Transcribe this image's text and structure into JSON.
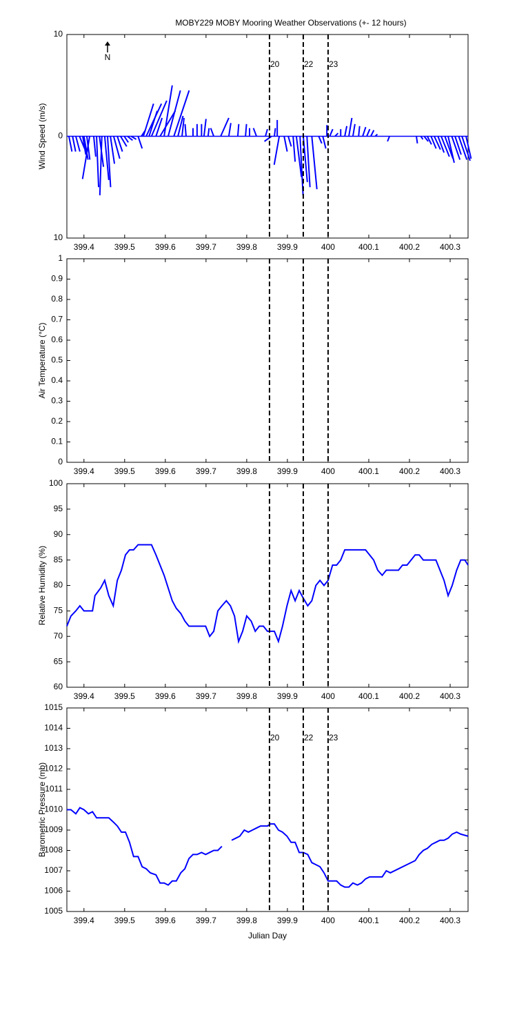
{
  "chart_data": [
    {
      "type": "stick",
      "title": "MOBY229 MOBY Mooring Weather Observations (+- 12 hours)",
      "ylabel": "Wind Speed (m/s)",
      "north_label": "N",
      "xlim": [
        399.358,
        400.344
      ],
      "xticks": [
        399.4,
        399.5,
        399.6,
        399.7,
        399.8,
        399.9,
        400,
        400.1,
        400.2,
        400.3
      ],
      "ylim": [
        -10,
        10
      ],
      "yticks": [
        {
          "value": -10,
          "label": "10"
        },
        0,
        10
      ],
      "vlines": [
        399.856,
        399.939,
        400.0
      ],
      "vline_labels": [
        "20",
        "22",
        "23"
      ],
      "vline_label_color": "#cc2222",
      "color": "#0000ff",
      "x": [
        399.363,
        399.372,
        399.38,
        399.389,
        399.397,
        399.4,
        399.407,
        399.414,
        399.424,
        399.431,
        399.438,
        399.444,
        399.451,
        399.458,
        399.465,
        399.473,
        399.482,
        399.49,
        399.499,
        399.507,
        399.516,
        399.533,
        399.541,
        399.546,
        399.553,
        399.56,
        399.566,
        399.577,
        399.587,
        399.597,
        399.607,
        399.621,
        399.631,
        399.641,
        399.651,
        399.668,
        399.678,
        399.689,
        399.695,
        399.705,
        399.719,
        399.736,
        399.756,
        399.778,
        399.797,
        399.807,
        399.824,
        399.846,
        399.861,
        399.868,
        399.875,
        399.88,
        399.892,
        399.902,
        399.914,
        399.922,
        399.931,
        399.939,
        399.948,
        399.96,
        399.977,
        399.987,
        399.997,
        400.004,
        400.017,
        400.031,
        400.041,
        400.051,
        400.061,
        400.075,
        400.085,
        400.095,
        400.105,
        400.116,
        400.151,
        400.217,
        400.228,
        400.236,
        400.244,
        400.253,
        400.261,
        400.27,
        400.278,
        400.287,
        400.295,
        400.304,
        400.312,
        400.321,
        400.329,
        400.339
      ],
      "u": [
        0.3,
        0.3,
        0.4,
        0.5,
        0.3,
        0.4,
        0.3,
        -0.7,
        0.2,
        0.2,
        0.4,
        -0.2,
        0.4,
        0.3,
        0.4,
        0.6,
        0.5,
        0.6,
        0.4,
        0.5,
        0.5,
        0.4,
        0.4,
        1,
        1.5,
        0.8,
        1.5,
        0.6,
        1.5,
        0.8,
        1.2,
        1.5,
        0.5,
        0.2,
        -0.1,
        0,
        0,
        0,
        0.2,
        0.1,
        -0.3,
        0.8,
        0.2,
        0.1,
        0.1,
        0,
        -0.3,
        0.2,
        -0.7,
        0.1,
        0,
        -0.5,
        0.3,
        0.3,
        0.2,
        0.5,
        0.3,
        0.4,
        0.3,
        0.5,
        0.3,
        0.3,
        0,
        0.3,
        0.3,
        0,
        0.2,
        0.3,
        0.2,
        0.1,
        0.3,
        0.3,
        0.3,
        0.2,
        -0.2,
        0.1,
        0.2,
        0.4,
        0.4,
        0.5,
        0.6,
        0.6,
        0.8,
        0.8,
        0.6,
        0.8,
        0.6,
        0.8,
        0.8,
        0.5
      ],
      "v": [
        -1.5,
        -1.5,
        -1.5,
        -1.2,
        -1.8,
        -2.3,
        -2.3,
        -4.2,
        -2,
        -5,
        -3,
        -5.8,
        -4.3,
        -5,
        -2.7,
        -2.2,
        -1.5,
        -1,
        -0.6,
        -0.4,
        -0.3,
        -1.2,
        0.6,
        3.2,
        3.2,
        2.5,
        3.5,
        1.8,
        2.5,
        5,
        4.5,
        4.5,
        2,
        1.8,
        1.2,
        0.8,
        1.2,
        1.2,
        1.7,
        0.8,
        0.8,
        1.8,
        1.3,
        1.2,
        1.2,
        0.8,
        0.8,
        0.7,
        -0.5,
        0.8,
        1.6,
        -2.8,
        -1.5,
        -1,
        -2.5,
        -4,
        -5.8,
        -4.5,
        -5,
        -5.2,
        -0.7,
        -1.2,
        1.1,
        0.7,
        0.3,
        0.7,
        1,
        1.8,
        1.2,
        1,
        0.9,
        0.7,
        0.6,
        0.2,
        -0.5,
        -0.7,
        -0.3,
        -0.5,
        -0.8,
        -1.2,
        -1.3,
        -1.6,
        -2,
        -2.2,
        -2.6,
        -2.3,
        -1.8,
        -2.3,
        -2.4,
        -2.2
      ]
    },
    {
      "type": "line",
      "ylabel": "Air Temperature (°C)",
      "xlim": [
        399.358,
        400.344
      ],
      "xticks": [
        399.4,
        399.5,
        399.6,
        399.7,
        399.8,
        399.9,
        400,
        400.1,
        400.2,
        400.3
      ],
      "ylim": [
        0,
        1
      ],
      "yticks": [
        0,
        0.1,
        0.2,
        0.3,
        0.4,
        0.5,
        0.6,
        0.7,
        0.8,
        0.9,
        1
      ],
      "vlines": [
        399.856,
        399.939,
        400.0
      ]
    },
    {
      "type": "line",
      "ylabel": "Relative Humidity (%)",
      "color": "#0000ff",
      "xlim": [
        399.358,
        400.344
      ],
      "xticks": [
        399.4,
        399.5,
        399.6,
        399.7,
        399.8,
        399.9,
        400,
        400.1,
        400.2,
        400.3
      ],
      "ylim": [
        60,
        100
      ],
      "yticks": [
        60,
        65,
        70,
        75,
        80,
        85,
        90,
        95,
        100
      ],
      "vlines": [
        399.856,
        399.939,
        400.0
      ],
      "x": [
        399.358,
        399.368,
        399.38,
        399.39,
        399.4,
        399.421,
        399.427,
        399.441,
        399.451,
        399.461,
        399.472,
        399.482,
        399.492,
        399.502,
        399.512,
        399.522,
        399.533,
        399.566,
        399.577,
        399.587,
        399.597,
        399.607,
        399.617,
        399.627,
        399.638,
        399.648,
        399.658,
        399.699,
        399.709,
        399.719,
        399.729,
        399.739,
        399.75,
        399.76,
        399.77,
        399.78,
        399.79,
        399.8,
        399.811,
        399.821,
        399.831,
        399.841,
        399.851,
        399.868,
        399.878,
        399.888,
        399.899,
        399.909,
        399.919,
        399.929,
        399.939,
        399.95,
        399.96,
        399.97,
        399.98,
        399.99,
        400.0,
        400.011,
        400.021,
        400.031,
        400.041,
        400.092,
        400.102,
        400.112,
        400.122,
        400.133,
        400.143,
        400.173,
        400.183,
        400.194,
        400.204,
        400.214,
        400.224,
        400.234,
        400.265,
        400.275,
        400.285,
        400.295,
        400.305,
        400.316,
        400.326,
        400.336,
        400.344
      ],
      "values": [
        72,
        74,
        75,
        76,
        75,
        75,
        78,
        79.5,
        81,
        78,
        76,
        81,
        83,
        86,
        87,
        87,
        88,
        88,
        86,
        84,
        82,
        79.5,
        77,
        75.5,
        74.5,
        73,
        72,
        72,
        70,
        71,
        75,
        76,
        77,
        76,
        74,
        69,
        71,
        74,
        73,
        71,
        72,
        72,
        71,
        71,
        69,
        72,
        76,
        79,
        77,
        79,
        77.5,
        76,
        77,
        80,
        81,
        80,
        81,
        84,
        84,
        85,
        87,
        87,
        86,
        85,
        83,
        82,
        83,
        83,
        84,
        84,
        85,
        86,
        86,
        85,
        85,
        83,
        81,
        78,
        80,
        83,
        85,
        85,
        84
      ]
    },
    {
      "type": "line",
      "ylabel": "Barometric Pressure (mb)",
      "xlabel": "Julian Day",
      "color": "#0000ff",
      "xlim": [
        399.358,
        400.344
      ],
      "xticks": [
        399.4,
        399.5,
        399.6,
        399.7,
        399.8,
        399.9,
        400,
        400.1,
        400.2,
        400.3
      ],
      "ylim": [
        1005,
        1015
      ],
      "yticks": [
        1005,
        1006,
        1007,
        1008,
        1009,
        1010,
        1011,
        1012,
        1013,
        1014,
        1015
      ],
      "vlines": [
        399.856,
        399.939,
        400.0
      ],
      "vline_labels": [
        "20",
        "22",
        "23"
      ],
      "vline_label_color": "#cc2222",
      "x": [
        399.358,
        399.368,
        399.38,
        399.39,
        399.4,
        399.411,
        399.421,
        399.431,
        399.461,
        399.472,
        399.482,
        399.492,
        399.502,
        399.512,
        399.522,
        399.533,
        399.543,
        399.553,
        399.563,
        399.577,
        399.587,
        399.597,
        399.607,
        399.617,
        399.627,
        399.638,
        399.648,
        399.658,
        399.668,
        399.678,
        399.689,
        399.699,
        399.709,
        399.719,
        399.729,
        399.739,
        399.75,
        399.763,
        399.773,
        399.783,
        399.794,
        399.804,
        399.814,
        399.824,
        399.834,
        399.851,
        399.858,
        399.868,
        399.878,
        399.888,
        399.899,
        399.909,
        399.919,
        399.929,
        399.939,
        399.95,
        399.96,
        399.97,
        399.98,
        399.99,
        400.0,
        400.021,
        400.031,
        400.041,
        400.051,
        400.061,
        400.072,
        400.082,
        400.092,
        400.102,
        400.133,
        400.143,
        400.153,
        400.214,
        400.224,
        400.234,
        400.244,
        400.255,
        400.265,
        400.275,
        400.285,
        400.295,
        400.305,
        400.316,
        400.326,
        400.344
      ],
      "values": [
        1010,
        1010,
        1009.8,
        1010.1,
        1010,
        1009.8,
        1009.9,
        1009.6,
        1009.6,
        1009.4,
        1009.2,
        1008.9,
        1008.9,
        1008.4,
        1007.7,
        1007.7,
        1007.2,
        1007.1,
        1006.9,
        1006.8,
        1006.4,
        1006.4,
        1006.3,
        1006.5,
        1006.5,
        1006.9,
        1007.1,
        1007.6,
        1007.8,
        1007.8,
        1007.9,
        1007.8,
        1007.9,
        1008,
        1008,
        1008.2,
        null,
        1008.5,
        1008.6,
        1008.7,
        1009,
        1008.9,
        1009,
        1009.1,
        1009.2,
        1009.2,
        1009.3,
        1009.3,
        1009,
        1008.9,
        1008.7,
        1008.4,
        1008.4,
        1007.9,
        1007.9,
        1007.8,
        1007.4,
        1007.3,
        1007.2,
        1006.9,
        1006.5,
        1006.5,
        1006.3,
        1006.2,
        1006.2,
        1006.4,
        1006.3,
        1006.4,
        1006.6,
        1006.7,
        1006.7,
        1007,
        1006.9,
        1007.5,
        1007.8,
        1008,
        1008.1,
        1008.3,
        1008.4,
        1008.5,
        1008.5,
        1008.6,
        1008.8,
        1008.9,
        1008.8,
        1008.7
      ]
    }
  ]
}
